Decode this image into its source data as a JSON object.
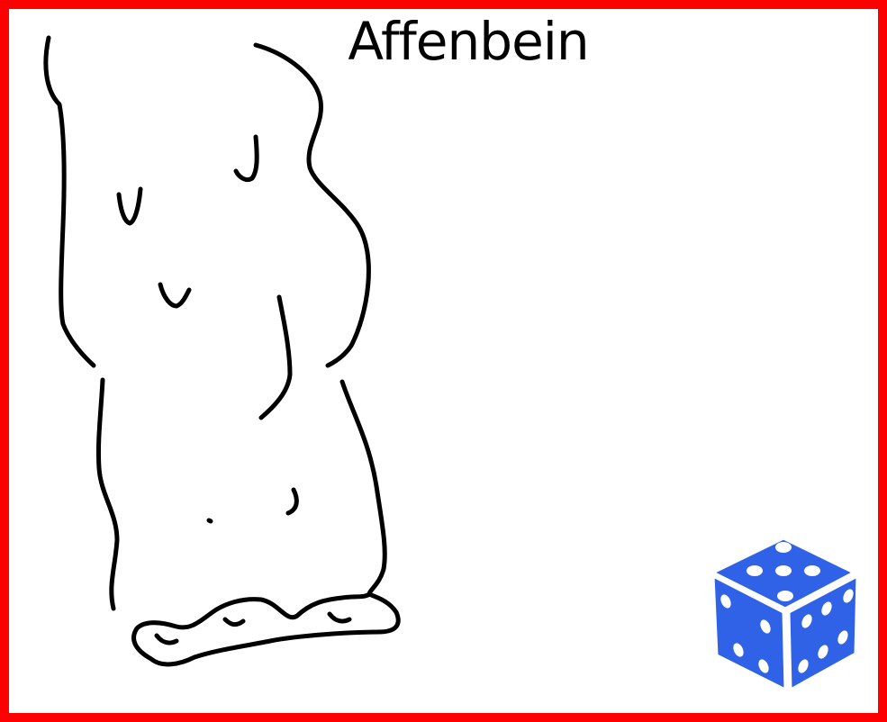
{
  "word": "Affenbein",
  "colors": {
    "frame": "#ff0000",
    "ink": "#000000",
    "dice": "#2f62e6",
    "dice_pips": "#ffffff"
  },
  "icons": {
    "reroll": "dice-icon"
  }
}
